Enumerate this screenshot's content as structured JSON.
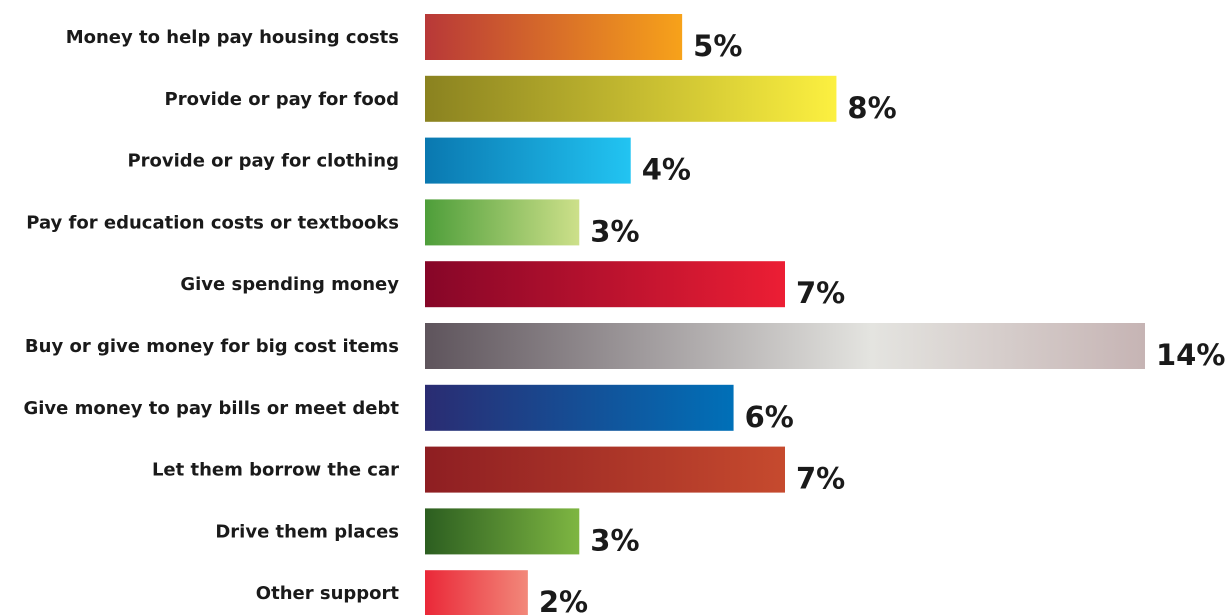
{
  "chart_data": {
    "type": "bar",
    "orientation": "horizontal",
    "categories": [
      "Money to help pay housing costs",
      "Provide or pay for food",
      "Provide or pay for clothing",
      "Pay for education costs or textbooks",
      "Give spending money",
      "Buy or give money for big cost items",
      "Give money to pay bills or meet debt",
      "Let them borrow the car",
      "Drive them places",
      "Other support"
    ],
    "values": [
      5,
      8,
      4,
      3,
      7,
      14,
      6,
      7,
      3,
      2
    ],
    "value_labels": [
      "5%",
      "8%",
      "4%",
      "3%",
      "7%",
      "14%",
      "6%",
      "7%",
      "3%",
      "2%"
    ],
    "unit": "%",
    "xlim": [
      0,
      14
    ],
    "grid": false,
    "legend": "none",
    "bar_colors": [
      [
        "#b83838",
        "#f7a21a"
      ],
      [
        "#8a8220",
        "#fcf040"
      ],
      [
        "#0a78b0",
        "#22c4f2"
      ],
      [
        "#4e9e3a",
        "#cde08a"
      ],
      [
        "#860628",
        "#ec1e34"
      ],
      [
        "#5e545c",
        "#e4e4e0",
        "#c6b4b4"
      ],
      [
        "#2a2c72",
        "#0070b8"
      ],
      [
        "#8e1e22",
        "#c64a2e"
      ],
      [
        "#2c5e20",
        "#7eb642"
      ],
      [
        "#ea2838",
        "#f2887a"
      ]
    ]
  }
}
